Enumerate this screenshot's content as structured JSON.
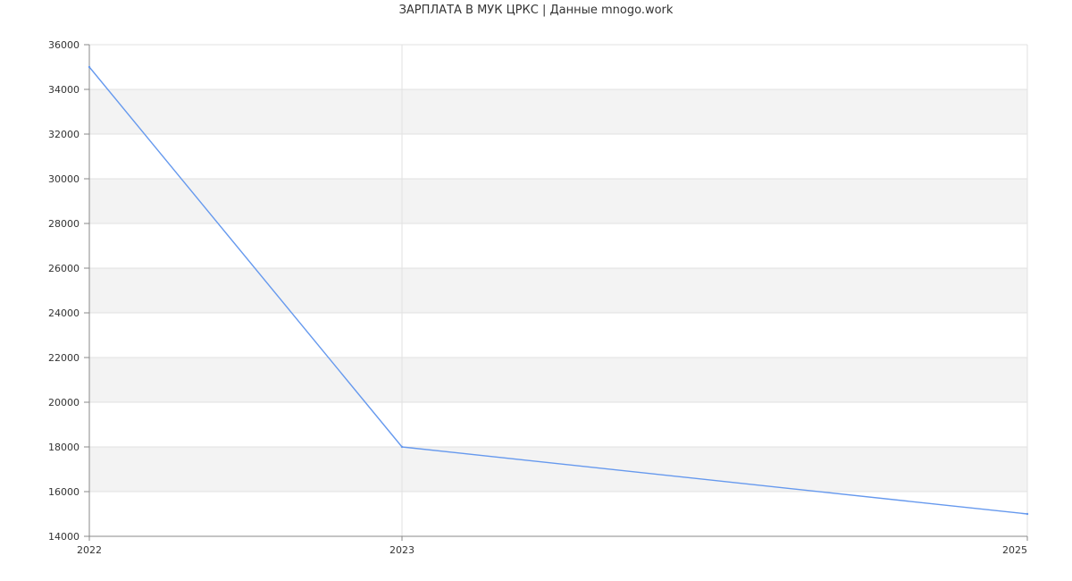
{
  "chart_data": {
    "type": "line",
    "title": "ЗАРПЛАТА В МУК ЦРКС | Данные mnogo.work",
    "xlabel": "",
    "ylabel": "",
    "x": [
      2022,
      2023,
      2025
    ],
    "x_ticks": [
      "2022",
      "2023",
      "2025"
    ],
    "ylim": [
      14000,
      36000
    ],
    "y_ticks": [
      "14000",
      "16000",
      "18000",
      "20000",
      "22000",
      "24000",
      "26000",
      "28000",
      "30000",
      "32000",
      "34000",
      "36000"
    ],
    "grid": true,
    "series": [
      {
        "values": [
          35000,
          18000,
          15000
        ]
      }
    ],
    "colors": {
      "line": "#6699ee",
      "band": "#f3f3f3",
      "grid": "#e2e2e2",
      "axis": "#888888"
    }
  }
}
